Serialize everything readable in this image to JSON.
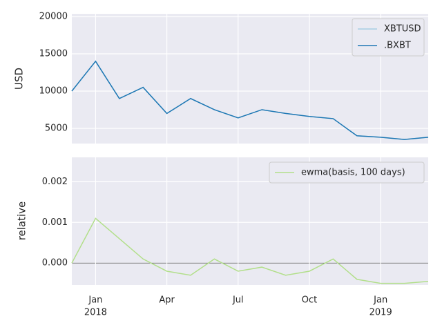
{
  "chart_data": [
    {
      "type": "line",
      "y_label": "USD",
      "x": [
        "2017-12",
        "2018-01",
        "2018-02",
        "2018-03",
        "2018-04",
        "2018-05",
        "2018-06",
        "2018-07",
        "2018-08",
        "2018-09",
        "2018-10",
        "2018-11",
        "2018-12",
        "2019-01",
        "2019-02",
        "2019-03"
      ],
      "series": [
        {
          "name": "XBTUSD",
          "color": "#a6cee3",
          "values": [
            10000,
            14000,
            9000,
            10500,
            7000,
            9000,
            7500,
            6400,
            7500,
            7000,
            6600,
            6300,
            4000,
            3800,
            3500,
            3800
          ]
        },
        {
          "name": ".BXBT",
          "color": "#1f78b4",
          "values": [
            10000,
            14000,
            9000,
            10500,
            7000,
            9000,
            7500,
            6400,
            7500,
            7000,
            6600,
            6300,
            4000,
            3800,
            3500,
            3800
          ]
        }
      ],
      "xlim": [
        "2017-12",
        "2019-03"
      ],
      "ylim": [
        2960,
        20370
      ],
      "xticks": [
        "2018-01",
        "2018-04",
        "2018-07",
        "2018-10",
        "2019-01"
      ],
      "yticks": [
        5000,
        10000,
        15000,
        20000
      ],
      "grid": true,
      "legend": "upper right"
    },
    {
      "type": "line",
      "y_label": "relative",
      "x": [
        "2017-12",
        "2018-01",
        "2018-02",
        "2018-03",
        "2018-04",
        "2018-05",
        "2018-06",
        "2018-07",
        "2018-08",
        "2018-09",
        "2018-10",
        "2018-11",
        "2018-12",
        "2019-01",
        "2019-02",
        "2019-03"
      ],
      "series": [
        {
          "name": "ewma(basis, 100 days)",
          "color": "#b2df8a",
          "values": [
            0.0,
            0.0011,
            0.0006,
            0.0001,
            -0.0002,
            -0.0003,
            0.0001,
            -0.0002,
            -0.0001,
            -0.0003,
            -0.0002,
            0.0001,
            -0.0004,
            -0.0005,
            -0.0005,
            -0.00045
          ]
        }
      ],
      "xlim": [
        "2017-12",
        "2019-03"
      ],
      "ylim": [
        -0.00054,
        0.0026
      ],
      "xticks": [
        {
          "value": "2018-01",
          "label": "Jan",
          "year": "2018"
        },
        {
          "value": "2018-04",
          "label": "Apr"
        },
        {
          "value": "2018-07",
          "label": "Jul"
        },
        {
          "value": "2018-10",
          "label": "Oct"
        },
        {
          "value": "2019-01",
          "label": "Jan",
          "year": "2019"
        }
      ],
      "yticks": [
        {
          "value": 0,
          "label": "0.000"
        },
        {
          "value": 0.001,
          "label": "0.001"
        },
        {
          "value": 0.002,
          "label": "0.002"
        }
      ],
      "grid": true,
      "legend": "upper right"
    }
  ]
}
